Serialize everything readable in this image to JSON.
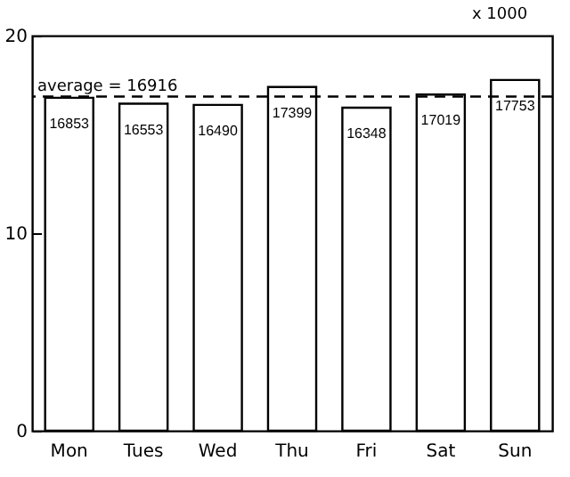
{
  "chart_data": {
    "type": "bar",
    "ylabel": "x 1000",
    "categories": [
      "Mon",
      "Tues",
      "Wed",
      "Thu",
      "Fri",
      "Sat",
      "Sun"
    ],
    "values": [
      16.853,
      16.553,
      16.49,
      17.399,
      16.348,
      17.019,
      17.753
    ],
    "color": "#ffffff",
    "ylim": [
      0,
      20
    ],
    "yticks": [
      0,
      10,
      20
    ],
    "ref_lines": [
      {
        "axis": "y",
        "value": 16.916,
        "label": "average = 16916",
        "line_style": "dashed"
      }
    ],
    "annotations": [
      {
        "text": "16853",
        "x": "Mon",
        "y": 16.853
      },
      {
        "text": "16553",
        "x": "Tues",
        "y": 16.553
      },
      {
        "text": "16490",
        "x": "Wed",
        "y": 16.49
      },
      {
        "text": "17399",
        "x": "Thu",
        "y": 17.399
      },
      {
        "text": "16348",
        "x": "Fri",
        "y": 16.348
      },
      {
        "text": "17019",
        "x": "Sat",
        "y": 17.019
      },
      {
        "text": "17753",
        "x": "Sun",
        "y": 17.753
      }
    ],
    "grid": false
  }
}
